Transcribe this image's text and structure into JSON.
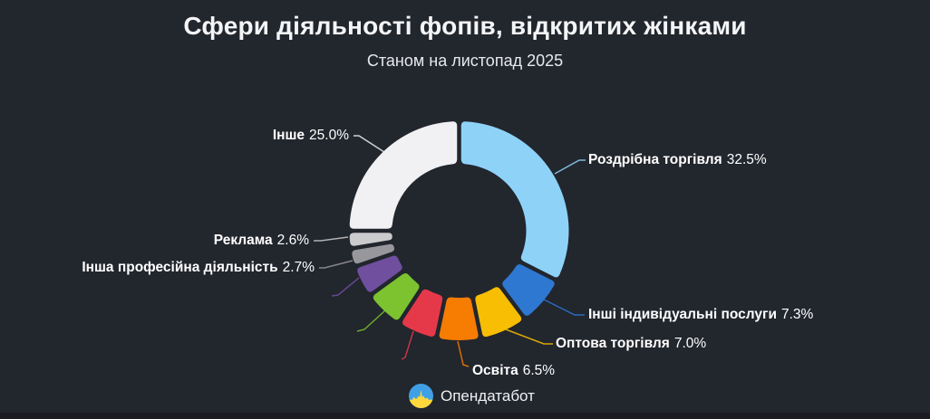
{
  "chart_data": {
    "type": "pie",
    "variant": "donut",
    "title": "Сфери діяльності фопів, відкритих жінками",
    "subtitle": "Станом на листопад 2025",
    "unit": "%",
    "legend": "none",
    "segments": [
      {
        "label": "Роздрібна торгівля",
        "value": 32.5,
        "pct_label": "32.5%",
        "color": "#8ed2f8",
        "label_visible": true
      },
      {
        "label": "Інші індивідуальні послуги",
        "value": 7.3,
        "pct_label": "7.3%",
        "color": "#2e78d2",
        "label_visible": true
      },
      {
        "label": "Оптова торгівля",
        "value": 7.0,
        "pct_label": "7.0%",
        "color": "#f8be04",
        "label_visible": true
      },
      {
        "label": "Освіта",
        "value": 6.5,
        "pct_label": "6.5%",
        "color": "#f67c02",
        "label_visible": true
      },
      {
        "label": "",
        "value": 5.9,
        "color": "#e5394a",
        "label_visible": false,
        "estimated": true
      },
      {
        "label": "",
        "value": 5.8,
        "color": "#7cc32f",
        "label_visible": false,
        "estimated": true
      },
      {
        "label": "",
        "value": 4.7,
        "color": "#6f4f9e",
        "label_visible": false,
        "estimated": true
      },
      {
        "label": "Інша професійна діяльність",
        "value": 2.7,
        "pct_label": "2.7%",
        "color": "#98989c",
        "label_visible": true
      },
      {
        "label": "Реклама",
        "value": 2.6,
        "pct_label": "2.6%",
        "color": "#cbcbcd",
        "label_visible": true
      },
      {
        "label": "Інше",
        "value": 25.0,
        "pct_label": "25.0%",
        "color": "#f1f1f3",
        "label_visible": true
      }
    ]
  },
  "footer": {
    "logo_text": "Опендатабот"
  },
  "theme": {
    "background": "#22262d",
    "text": "#ffffff",
    "bottom_strip": "#1a1c22",
    "logo_blue": "#3fa0e6",
    "logo_yellow": "#ffd83c"
  }
}
